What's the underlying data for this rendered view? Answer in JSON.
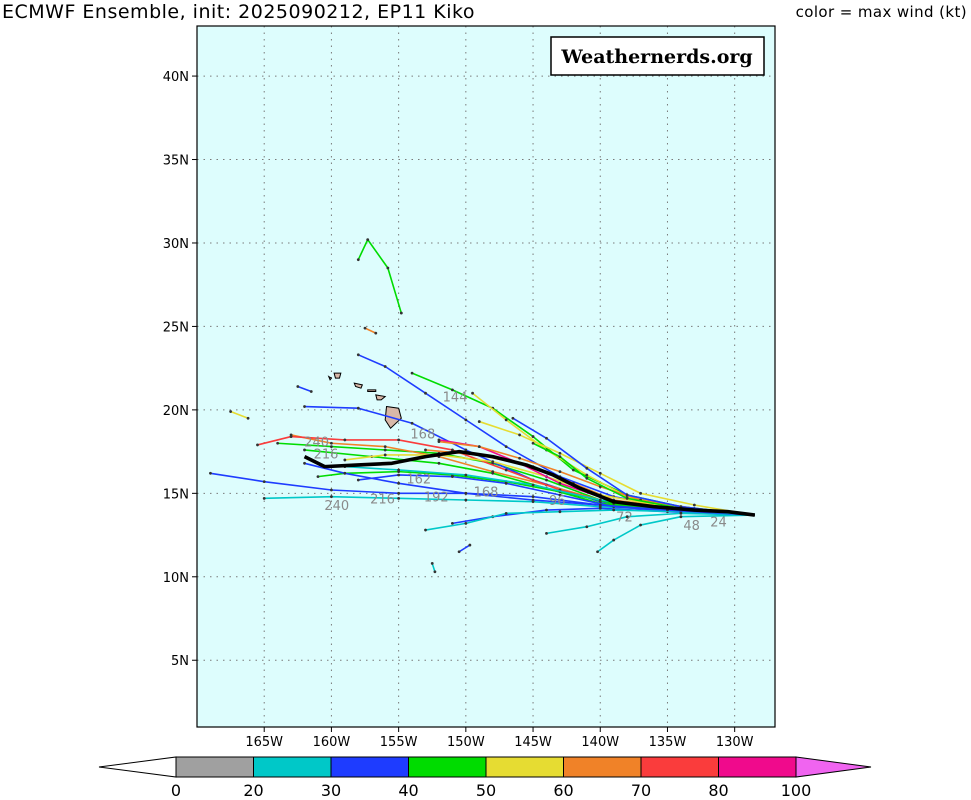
{
  "header": {
    "title": "ECMWF Ensemble, init: 2025090212, EP11 Kiko",
    "color_legend_label": "color = max wind (kt)"
  },
  "map": {
    "watermark": "Weathernerds.org",
    "background_color": "#ddfdfd",
    "lon_range": [
      -170,
      -127
    ],
    "lat_range": [
      1,
      43
    ],
    "lat_ticks": [
      {
        "value": 40,
        "label": "40N"
      },
      {
        "value": 35,
        "label": "35N"
      },
      {
        "value": 30,
        "label": "30N"
      },
      {
        "value": 25,
        "label": "25N"
      },
      {
        "value": 20,
        "label": "20N"
      },
      {
        "value": 15,
        "label": "15N"
      },
      {
        "value": 10,
        "label": "10N"
      },
      {
        "value": 5,
        "label": "5N"
      }
    ],
    "lon_ticks": [
      {
        "value": -165,
        "label": "165W"
      },
      {
        "value": -160,
        "label": "160W"
      },
      {
        "value": -155,
        "label": "155W"
      },
      {
        "value": -150,
        "label": "150W"
      },
      {
        "value": -145,
        "label": "145W"
      },
      {
        "value": -140,
        "label": "140W"
      },
      {
        "value": -135,
        "label": "135W"
      },
      {
        "value": -130,
        "label": "130W"
      }
    ],
    "grid": true,
    "forecast_hour_labels": [
      {
        "text": "240",
        "lon": -159.6,
        "lat": 14.0
      },
      {
        "text": "240",
        "lon": -161.1,
        "lat": 17.8
      },
      {
        "text": "216",
        "lon": -160.4,
        "lat": 17.1
      },
      {
        "text": "216",
        "lon": -156.2,
        "lat": 14.4
      },
      {
        "text": "192",
        "lon": -152.2,
        "lat": 14.5
      },
      {
        "text": "168",
        "lon": -148.5,
        "lat": 14.8
      },
      {
        "text": "162",
        "lon": -153.5,
        "lat": 15.6
      },
      {
        "text": "144",
        "lon": -150.8,
        "lat": 20.5
      },
      {
        "text": "168",
        "lon": -153.2,
        "lat": 18.3
      },
      {
        "text": "96",
        "lon": -143.2,
        "lat": 14.3
      },
      {
        "text": "72",
        "lon": -138.2,
        "lat": 13.3
      },
      {
        "text": "48",
        "lon": -133.2,
        "lat": 12.8
      },
      {
        "text": "24",
        "lon": -131.2,
        "lat": 13.0
      }
    ],
    "mean_track": [
      [
        -128.5,
        13.7
      ],
      [
        -130.5,
        13.9
      ],
      [
        -133.0,
        14.0
      ],
      [
        -136.0,
        14.2
      ],
      [
        -139.0,
        14.5
      ],
      [
        -141.5,
        15.3
      ],
      [
        -143.5,
        16.1
      ],
      [
        -145.5,
        16.7
      ],
      [
        -148.0,
        17.2
      ],
      [
        -150.5,
        17.5
      ],
      [
        -153.0,
        17.2
      ],
      [
        -155.5,
        16.8
      ],
      [
        -158.0,
        16.7
      ],
      [
        -160.5,
        16.6
      ],
      [
        -162.0,
        17.2
      ]
    ],
    "ensemble_tracks": [
      {
        "wind": 45,
        "points": [
          [
            -128.6,
            13.7
          ],
          [
            -135,
            14.1
          ],
          [
            -140,
            14.6
          ],
          [
            -144,
            15.8
          ],
          [
            -148,
            16.8
          ],
          [
            -152,
            17.4
          ],
          [
            -156,
            17.6
          ],
          [
            -160,
            17.8
          ],
          [
            -164,
            18.0
          ]
        ]
      },
      {
        "wind": 35,
        "points": [
          [
            -128.6,
            13.7
          ],
          [
            -135,
            14.0
          ],
          [
            -140,
            14.3
          ],
          [
            -145,
            14.8
          ],
          [
            -150,
            15.0
          ],
          [
            -155,
            15.0
          ],
          [
            -160,
            15.2
          ],
          [
            -165,
            15.7
          ],
          [
            -169,
            16.2
          ]
        ]
      },
      {
        "wind": 25,
        "points": [
          [
            -128.6,
            13.7
          ],
          [
            -135,
            14.0
          ],
          [
            -140,
            14.2
          ],
          [
            -145,
            14.5
          ],
          [
            -150,
            14.6
          ],
          [
            -155,
            14.7
          ],
          [
            -160,
            14.8
          ],
          [
            -165,
            14.7
          ]
        ]
      },
      {
        "wind": 45,
        "points": [
          [
            -128.6,
            13.7
          ],
          [
            -134,
            14.2
          ],
          [
            -138,
            14.9
          ],
          [
            -142,
            16.4
          ],
          [
            -145,
            18.4
          ],
          [
            -148,
            20.1
          ],
          [
            -151,
            21.2
          ],
          [
            -154,
            22.2
          ]
        ]
      },
      {
        "wind": 35,
        "points": [
          [
            -128.6,
            13.7
          ],
          [
            -135,
            14.2
          ],
          [
            -139,
            14.8
          ],
          [
            -143,
            16.0
          ],
          [
            -147,
            17.8
          ],
          [
            -150,
            19.4
          ],
          [
            -153,
            21.0
          ],
          [
            -156,
            22.6
          ],
          [
            -158,
            23.3
          ]
        ]
      },
      {
        "wind": 35,
        "points": [
          [
            -128.6,
            13.7
          ],
          [
            -135,
            14.0
          ],
          [
            -140,
            14.5
          ],
          [
            -145,
            15.8
          ],
          [
            -150,
            17.6
          ],
          [
            -154,
            19.2
          ],
          [
            -158,
            20.1
          ],
          [
            -162,
            20.2
          ]
        ]
      },
      {
        "wind": 65,
        "points": [
          [
            -128.6,
            13.7
          ],
          [
            -135,
            14.1
          ],
          [
            -140,
            14.6
          ],
          [
            -144,
            15.5
          ],
          [
            -148,
            16.3
          ],
          [
            -152,
            17.2
          ],
          [
            -156,
            17.8
          ],
          [
            -160,
            18.0
          ],
          [
            -163,
            18.5
          ]
        ]
      },
      {
        "wind": 75,
        "points": [
          [
            -128.6,
            13.7
          ],
          [
            -134,
            14.0
          ],
          [
            -139,
            14.4
          ],
          [
            -143,
            15.2
          ],
          [
            -147,
            16.4
          ],
          [
            -151,
            17.6
          ],
          [
            -155,
            18.2
          ],
          [
            -159,
            18.2
          ],
          [
            -163,
            18.4
          ],
          [
            -165.5,
            17.9
          ]
        ]
      },
      {
        "wind": 55,
        "points": [
          [
            -128.6,
            13.7
          ],
          [
            -134,
            14.1
          ],
          [
            -138,
            14.8
          ],
          [
            -141,
            16.1
          ],
          [
            -144,
            17.6
          ],
          [
            -147,
            19.4
          ],
          [
            -149.5,
            21.0
          ]
        ]
      },
      {
        "wind": 45,
        "points": [
          [
            -128.6,
            13.7
          ],
          [
            -135,
            14.0
          ],
          [
            -140,
            14.4
          ],
          [
            -144,
            15.3
          ],
          [
            -148,
            16.2
          ],
          [
            -152,
            16.8
          ],
          [
            -157,
            17.2
          ],
          [
            -162,
            17.6
          ]
        ]
      },
      {
        "wind": 35,
        "points": [
          [
            -128.6,
            13.7
          ],
          [
            -135,
            13.9
          ],
          [
            -140,
            14.1
          ],
          [
            -144,
            14.0
          ],
          [
            -148,
            13.6
          ],
          [
            -151,
            13.2
          ]
        ]
      },
      {
        "wind": 25,
        "points": [
          [
            -128.6,
            13.7
          ],
          [
            -134,
            13.8
          ],
          [
            -138,
            13.6
          ],
          [
            -141,
            13.0
          ],
          [
            -144,
            12.6
          ]
        ]
      },
      {
        "wind": 25,
        "points": [
          [
            -128.6,
            13.7
          ],
          [
            -134,
            13.6
          ],
          [
            -137,
            13.1
          ],
          [
            -139,
            12.2
          ],
          [
            -140.2,
            11.5
          ]
        ]
      },
      {
        "wind": 65,
        "points": [
          [
            -128.6,
            13.7
          ],
          [
            -134,
            14.1
          ],
          [
            -139,
            14.6
          ],
          [
            -142,
            15.6
          ],
          [
            -145,
            16.6
          ],
          [
            -149,
            17.3
          ],
          [
            -153,
            17.6
          ]
        ]
      },
      {
        "wind": 55,
        "points": [
          [
            -128.6,
            13.7
          ],
          [
            -135,
            14.2
          ],
          [
            -140,
            14.9
          ],
          [
            -144,
            16.0
          ],
          [
            -148,
            16.9
          ],
          [
            -152,
            17.3
          ],
          [
            -156,
            17.3
          ],
          [
            -159,
            17.0
          ]
        ]
      },
      {
        "wind": 35,
        "points": [
          [
            -128.6,
            13.7
          ],
          [
            -134,
            13.9
          ],
          [
            -139,
            14.2
          ],
          [
            -143,
            14.9
          ],
          [
            -147,
            15.6
          ],
          [
            -151,
            16.0
          ],
          [
            -155,
            16.1
          ],
          [
            -158,
            15.8
          ]
        ]
      },
      {
        "wind": 85,
        "points": [
          [
            -128.6,
            13.7
          ],
          [
            -134,
            14.0
          ],
          [
            -139,
            14.5
          ],
          [
            -143,
            15.6
          ],
          [
            -146,
            16.8
          ],
          [
            -149,
            17.8
          ],
          [
            -152,
            18.2
          ]
        ]
      },
      {
        "wind": 45,
        "points": [
          [
            -128.6,
            13.7
          ],
          [
            -134,
            14.0
          ],
          [
            -139,
            14.4
          ],
          [
            -143,
            15.1
          ],
          [
            -147,
            15.7
          ],
          [
            -151,
            16.1
          ],
          [
            -155,
            16.3
          ],
          [
            -159,
            16.2
          ],
          [
            -161,
            16.0
          ]
        ]
      },
      {
        "wind": 25,
        "points": [
          [
            -128.6,
            13.7
          ],
          [
            -134,
            13.9
          ],
          [
            -139,
            14.0
          ],
          [
            -143,
            13.9
          ],
          [
            -147,
            13.8
          ],
          [
            -150,
            13.2
          ],
          [
            -153,
            12.8
          ]
        ]
      },
      {
        "wind": 55,
        "points": [
          [
            -128.6,
            13.7
          ],
          [
            -133,
            14.3
          ],
          [
            -137,
            15.0
          ],
          [
            -140,
            16.2
          ],
          [
            -143,
            17.4
          ],
          [
            -146,
            18.5
          ],
          [
            -149,
            19.3
          ]
        ]
      },
      {
        "wind": 35,
        "points": [
          [
            -128.6,
            13.7
          ],
          [
            -135,
            14.0
          ],
          [
            -140,
            14.3
          ],
          [
            -145,
            14.6
          ],
          [
            -150,
            15.0
          ],
          [
            -155,
            15.6
          ],
          [
            -159,
            16.2
          ],
          [
            -162,
            16.8
          ]
        ]
      },
      {
        "wind": 65,
        "points": [
          [
            -128.6,
            13.7
          ],
          [
            -133,
            14.1
          ],
          [
            -137,
            14.6
          ],
          [
            -140,
            15.4
          ],
          [
            -143,
            16.3
          ],
          [
            -146,
            17.1
          ],
          [
            -149,
            17.8
          ],
          [
            -152,
            18.1
          ]
        ]
      },
      {
        "wind": 45,
        "points": [
          [
            -128.6,
            13.7
          ],
          [
            -134,
            14.1
          ],
          [
            -138,
            14.7
          ],
          [
            -141,
            15.9
          ],
          [
            -143,
            17.2
          ],
          [
            -145,
            18.0
          ]
        ]
      },
      {
        "wind": 35,
        "points": [
          [
            -128.6,
            13.7
          ],
          [
            -134,
            14.2
          ],
          [
            -138,
            14.9
          ],
          [
            -141,
            16.5
          ],
          [
            -144,
            18.3
          ],
          [
            -146.5,
            19.5
          ]
        ]
      },
      {
        "wind": 25,
        "points": [
          [
            -128.6,
            13.7
          ],
          [
            -135,
            14.1
          ],
          [
            -140,
            14.6
          ],
          [
            -145,
            15.5
          ],
          [
            -150,
            16.1
          ],
          [
            -155,
            16.4
          ],
          [
            -159,
            16.6
          ]
        ]
      },
      {
        "wind": 45,
        "points": [
          [
            -154.8,
            25.8
          ],
          [
            -155.8,
            28.5
          ],
          [
            -157.3,
            30.2
          ],
          [
            -158,
            29
          ]
        ]
      },
      {
        "wind": 35,
        "points": [
          [
            -150.5,
            11.5
          ],
          [
            -149.7,
            11.9
          ]
        ]
      },
      {
        "wind": 25,
        "points": [
          [
            -152.5,
            10.8
          ],
          [
            -152.3,
            10.3
          ]
        ]
      },
      {
        "wind": 35,
        "points": [
          [
            -162.5,
            21.4
          ],
          [
            -161.5,
            21.1
          ]
        ]
      },
      {
        "wind": 55,
        "points": [
          [
            -167.5,
            19.9
          ],
          [
            -166.2,
            19.5
          ]
        ]
      },
      {
        "wind": 65,
        "points": [
          [
            -157.5,
            24.9
          ],
          [
            -156.7,
            24.6
          ]
        ]
      }
    ],
    "islands": [
      {
        "name": "hawaii-big-island",
        "points": [
          [
            -155.9,
            20.2
          ],
          [
            -155.0,
            20.1
          ],
          [
            -154.8,
            19.5
          ],
          [
            -155.6,
            18.9
          ],
          [
            -156.0,
            19.4
          ]
        ]
      },
      {
        "name": "maui",
        "points": [
          [
            -156.7,
            20.9
          ],
          [
            -156.0,
            20.8
          ],
          [
            -156.3,
            20.6
          ],
          [
            -156.6,
            20.6
          ]
        ]
      },
      {
        "name": "molokai",
        "points": [
          [
            -157.3,
            21.2
          ],
          [
            -156.7,
            21.2
          ],
          [
            -156.7,
            21.1
          ],
          [
            -157.3,
            21.1
          ]
        ]
      },
      {
        "name": "oahu",
        "points": [
          [
            -158.3,
            21.6
          ],
          [
            -157.7,
            21.5
          ],
          [
            -157.8,
            21.3
          ],
          [
            -158.2,
            21.4
          ]
        ]
      },
      {
        "name": "kauai",
        "points": [
          [
            -159.8,
            22.2
          ],
          [
            -159.3,
            22.2
          ],
          [
            -159.4,
            21.9
          ],
          [
            -159.7,
            21.9
          ]
        ]
      },
      {
        "name": "niihau",
        "points": [
          [
            -160.2,
            22.0
          ],
          [
            -160.0,
            21.9
          ],
          [
            -160.1,
            21.8
          ]
        ]
      }
    ]
  },
  "colorbar": {
    "ticks": [
      "0",
      "20",
      "30",
      "40",
      "50",
      "60",
      "70",
      "80",
      "100"
    ],
    "colors": [
      "#ffffff",
      "#a0a0a0",
      "#00c8c8",
      "#1e3cff",
      "#00dc00",
      "#e6dc32",
      "#f08228",
      "#fa3c3c",
      "#f00a8c",
      "#f064f0"
    ]
  }
}
